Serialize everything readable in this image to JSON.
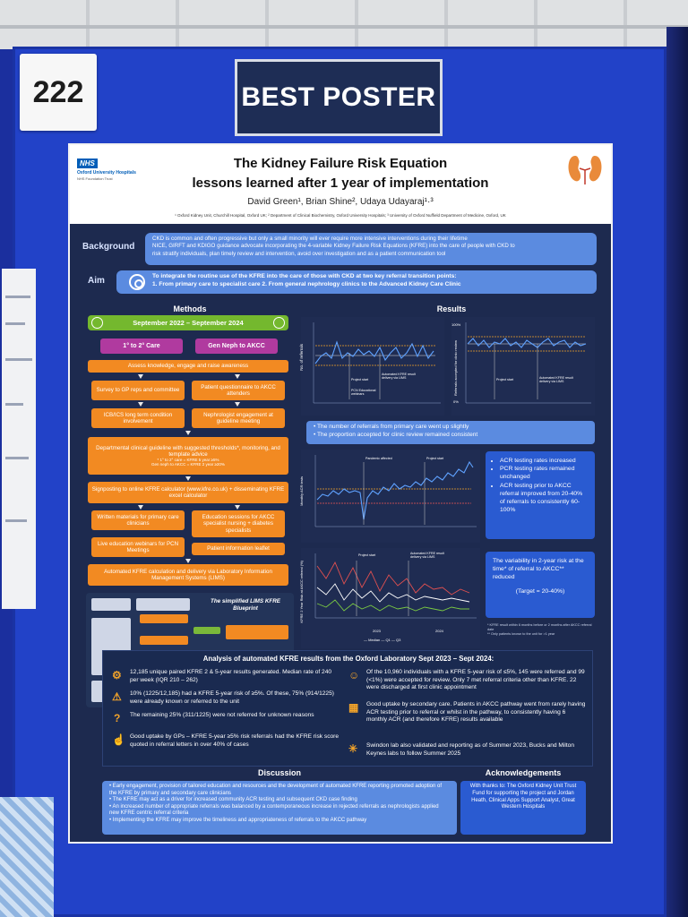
{
  "poster_number": "222",
  "award": "BEST POSTER",
  "header": {
    "nhs_badge": "NHS",
    "org_name": "Oxford University Hospitals",
    "org_sub": "NHS Foundation Trust",
    "title_line1": "The Kidney Failure Risk Equation",
    "title_line2": "lessons learned after 1 year of implementation",
    "authors": "David Green¹, Brian Shine², Udaya Udayaraj¹·³",
    "affiliations": "¹ Oxford Kidney Unit, Churchill Hospital, Oxford UK; ² Department of Clinical Biochemistry, Oxford University Hospitals; ³ University of Oxford Nuffield Department of Medicine, Oxford, UK"
  },
  "background": {
    "label": "Background",
    "line1": "CKD is common and often progressive but only a small minority will ever require more intensive interventions during their lifetime",
    "line2": "NICE, GIRFT and KDIGO guidance advocate incorporating the 4-variable Kidney Failure Risk Equations (KFRE) into the care of people with CKD to",
    "line3": "risk stratify individuals, plan timely review and intervention, avoid over investigation and as a patient communication tool"
  },
  "aim": {
    "label": "Aim",
    "line1": "To integrate the routine use of the KFRE into the care of those with CKD at two key referral transition points:",
    "line2": "1.  From primary care to specialist care          2.  From general nephrology clinics to the Advanced Kidney Care Clinic"
  },
  "methods": {
    "heading": "Methods",
    "dates": "September 2022 – September 2024",
    "col1": "1° to 2° Care",
    "col2": "Gen Neph to AKCC",
    "assess": "Assess knowledge, engage and raise awareness",
    "survey": "Survey to GP reps and committee",
    "questionnaire": "Patient questionnaire to AKCC attenders",
    "icb": "ICB/ICS long term condition involvement",
    "nephrologist": "Nephrologist engagement at guideline meeting",
    "guideline": "Departmental clinical guideline with suggested thresholds*, monitoring, and template advice",
    "guideline_sub1": "* 1° to 2° care = KFRE 5 year ≥5%",
    "guideline_sub2": "Gen neph to AKCC = KFRE 2 year ≥20%",
    "signposting": "Signposting to online KFRE calculator (www.kfre.co.uk) + disseminating KFRE excel calculator",
    "written": "Written materials for primary care clinicians",
    "education": "Education sessions for AKCC specialist nursing + diabetes specialists",
    "webinars": "Live education webinars for PCN Meetings",
    "leaflet": "Patient information leaflet",
    "automated": "Automated KFRE calculation and delivery via Laboratory Information Management Systems (LIMS)",
    "lims_title": "The simplified LIMS KFRE Blueprint"
  },
  "results": {
    "heading": "Results",
    "band1": "The number of referrals from primary care went up slightly",
    "band2": "The proportion accepted for clinic review remained consistent",
    "chart1_ylabel": "No. of referrals",
    "chart2_ylabel": "Referrals accepted for clinic review",
    "chart3_ylabel": "Monthly ACR tests",
    "chart4_ylabel": "KFRE 2 Year Risk at AKCC referral (%)",
    "ann_project_start": "Project start",
    "ann_kfre_delivery": "Automated KFRE result delivery via LIMS",
    "ann_pandemic": "Pandemic affected",
    "ann_pcn": "PCN Educational webinars",
    "side1_item1": "ACR testing rates increased",
    "side1_item2": "PCR testing rates remained unchanged",
    "side1_item3": "ACR testing prior to AKCC referral improved from 20-40% of referrals to consistently 60-100%",
    "side2_text": "The variability in 2-year risk at the time* of referral to AKCC** reduced",
    "side2_target": "(Target = 20-40%)",
    "footnote1": "* KFRE result within 6 months before or 2 months after AKCC referral date",
    "footnote2": "** Only patients known to the unit for >1 year",
    "legend": "— Median  — Q1  — Q3",
    "year_2023": "2023",
    "year_2024": "2024"
  },
  "analysis": {
    "heading": "Analysis of automated KFRE results from the Oxford Laboratory Sept 2023 – Sept 2024:",
    "item1": "12,185 unique paired KFRE 2 & 5-year results generated. Median rate of 240 per week (IQR 210 – 262)",
    "item2": "10% (1225/12,185) had a KFRE 5-year risk of ≥5%. Of these, 75% (914/1225) were already known or referred to the unit",
    "item3": "The remaining 25% (311/1225) were not referred for unknown reasons",
    "item4": "Good uptake by GPs – KFRE 5-year ≥5% risk referrals had the KFRE risk score quoted in referral letters in over 40% of cases",
    "item5": "Of the 10,960 individuals with a KFRE 5-year risk of ≤5%, 145 were referred and 99 (<1%) were accepted for review. Only 7 met referral criteria other than KFRE. 22 were discharged at first clinic appointment",
    "item6": "Good uptake by secondary care. Patients in AKCC pathway went from rarely having ACR testing prior to referral or whilst in the pathway, to consistently having 6 monthly ACR (and therefore KFRE) results available",
    "item7": "Swindon lab also validated and reporting as of Summer 2023, Bucks and Milton Keynes labs to follow Summer 2025"
  },
  "discussion": {
    "heading": "Discussion",
    "item1": "Early engagement, provision of tailored education and resources and the development of automated KFRE reporting promoted adoption of the KFRE by primary and secondary care clinicians",
    "item2": "The KFRE may act as a driver for increased community ACR testing and subsequent CKD case finding",
    "item3": "An increased number of appropriate referrals was balanced by a contemporaneous increase in rejected referrals as nephrologists applied new KFRE centric referral criteria",
    "item4": "Implementing the KFRE may improve the timeliness and appropriateness of referrals to the AKCC pathway"
  },
  "acknowledgements": {
    "heading": "Acknowledgements",
    "text": "With thanks to: The Oxford Kidney Unit Trust Fund for supporting the project and Jordan Heath, Clinical Apps Support Analyst, Great Western Hospitals"
  },
  "colors": {
    "board": "#2242c8",
    "poster_bg": "#1d2a4f",
    "accent_blue": "#5b8be0",
    "orange": "#f28a22",
    "green": "#74b82e",
    "purple": "#b03a9f"
  }
}
